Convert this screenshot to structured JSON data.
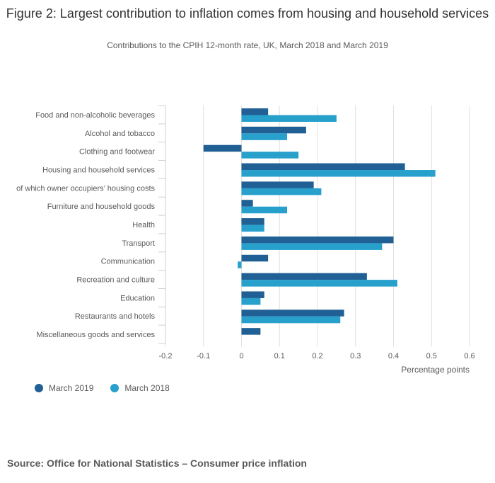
{
  "chart_data": {
    "type": "bar",
    "orientation": "horizontal",
    "title": "Figure 2: Largest contribution to inflation comes from housing and household services",
    "subtitle": "Contributions to the CPIH 12-month rate, UK, March 2018 and March 2019",
    "xlabel": "Percentage points",
    "ylabel": "",
    "xlim": [
      -0.2,
      0.6
    ],
    "xticks": [
      -0.2,
      -0.1,
      0,
      0.1,
      0.2,
      0.3,
      0.4,
      0.5,
      0.6
    ],
    "xtick_labels": [
      "-0.2",
      "-0.1",
      "0",
      "0.1",
      "0.2",
      "0.3",
      "0.4",
      "0.5",
      "0.6"
    ],
    "categories": [
      "Food and non-alcoholic beverages",
      "Alcohol and tobacco",
      "Clothing and footwear",
      "Housing and household services",
      "of which owner occupiers’ housing costs",
      "Furniture and household goods",
      "Health",
      "Transport",
      "Communication",
      "Recreation and culture",
      "Education",
      "Restaurants and hotels",
      "Miscellaneous goods and services"
    ],
    "series": [
      {
        "name": "March 2019",
        "color": "#206095",
        "values": [
          0.07,
          0.17,
          -0.1,
          0.43,
          0.19,
          0.03,
          0.06,
          0.4,
          0.07,
          0.33,
          0.06,
          0.27,
          0.05
        ]
      },
      {
        "name": "March 2018",
        "color": "#27a0cc",
        "values": [
          0.25,
          0.12,
          0.15,
          0.51,
          0.21,
          0.12,
          0.06,
          0.37,
          -0.01,
          0.41,
          0.05,
          0.26,
          0.0
        ]
      }
    ],
    "grid": true,
    "legend": "bottom-left"
  },
  "source": "Source: Office for National Statistics – Consumer price inflation"
}
